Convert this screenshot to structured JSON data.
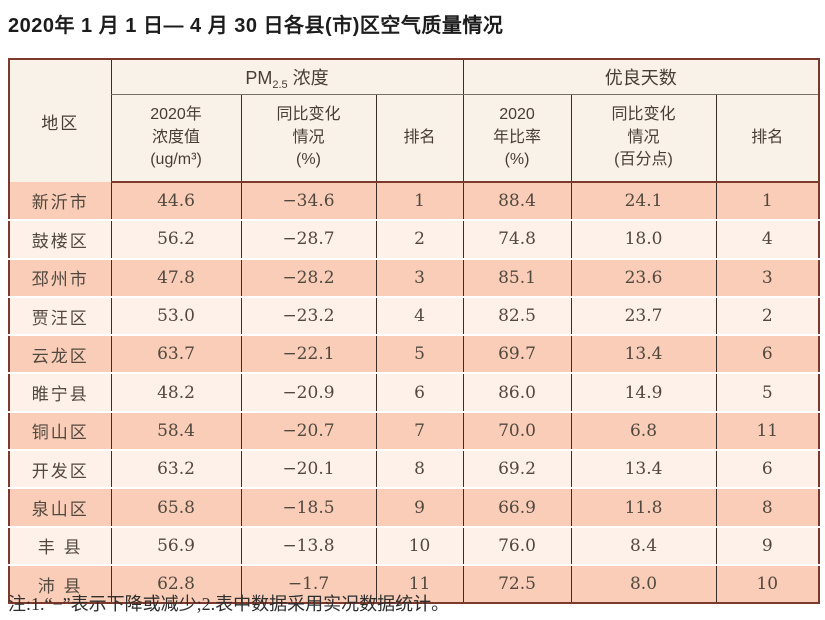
{
  "title": "2020年 1 月 1 日— 4 月 30 日各县(市)区空气质量情况",
  "table": {
    "header": {
      "region": "地区",
      "pm_group": {
        "prefix": "PM",
        "sub": "2.5",
        "suffix": " 浓度"
      },
      "good_group": "优良天数",
      "sub": [
        "2020年\n浓度值\n(ug/m³)",
        "同比变化\n情况\n(%)",
        "排名",
        "2020\n年比率\n(%)",
        "同比变化\n情况\n(百分点)",
        "排名"
      ]
    },
    "rows": [
      {
        "region": "新沂市",
        "pm_value": "44.6",
        "pm_change": "−34.6",
        "pm_rank": "1",
        "good_rate": "88.4",
        "good_change": "24.1",
        "good_rank": "1"
      },
      {
        "region": "鼓楼区",
        "pm_value": "56.2",
        "pm_change": "−28.7",
        "pm_rank": "2",
        "good_rate": "74.8",
        "good_change": "18.0",
        "good_rank": "4"
      },
      {
        "region": "邳州市",
        "pm_value": "47.8",
        "pm_change": "−28.2",
        "pm_rank": "3",
        "good_rate": "85.1",
        "good_change": "23.6",
        "good_rank": "3"
      },
      {
        "region": "贾汪区",
        "pm_value": "53.0",
        "pm_change": "−23.2",
        "pm_rank": "4",
        "good_rate": "82.5",
        "good_change": "23.7",
        "good_rank": "2"
      },
      {
        "region": "云龙区",
        "pm_value": "63.7",
        "pm_change": "−22.1",
        "pm_rank": "5",
        "good_rate": "69.7",
        "good_change": "13.4",
        "good_rank": "6"
      },
      {
        "region": "睢宁县",
        "pm_value": "48.2",
        "pm_change": "−20.9",
        "pm_rank": "6",
        "good_rate": "86.0",
        "good_change": "14.9",
        "good_rank": "5"
      },
      {
        "region": "铜山区",
        "pm_value": "58.4",
        "pm_change": "−20.7",
        "pm_rank": "7",
        "good_rate": "70.0",
        "good_change": "6.8",
        "good_rank": "11"
      },
      {
        "region": "开发区",
        "pm_value": "63.2",
        "pm_change": "−20.1",
        "pm_rank": "8",
        "good_rate": "69.2",
        "good_change": "13.4",
        "good_rank": "6"
      },
      {
        "region": "泉山区",
        "pm_value": "65.8",
        "pm_change": "−18.5",
        "pm_rank": "9",
        "good_rate": "66.9",
        "good_change": "11.8",
        "good_rank": "8"
      },
      {
        "region": "丰 县",
        "pm_value": "56.9",
        "pm_change": "−13.8",
        "pm_rank": "10",
        "good_rate": "76.0",
        "good_change": "8.4",
        "good_rank": "9"
      },
      {
        "region": "沛 县",
        "pm_value": "62.8",
        "pm_change": "−1.7",
        "pm_rank": "11",
        "good_rate": "72.5",
        "good_change": "8.0",
        "good_rank": "10"
      }
    ]
  },
  "footnote": "注:1.“−”表示下降或减少;2.表中数据采用实况数据统计。",
  "colors": {
    "row_salmon": "#f9cdb7",
    "row_pale": "#fdf1ea",
    "header_cream": "#f9f2e8",
    "outer_border": "#7d392c",
    "inner_line": "#3a2f28",
    "row_separator": "#ffffff"
  }
}
